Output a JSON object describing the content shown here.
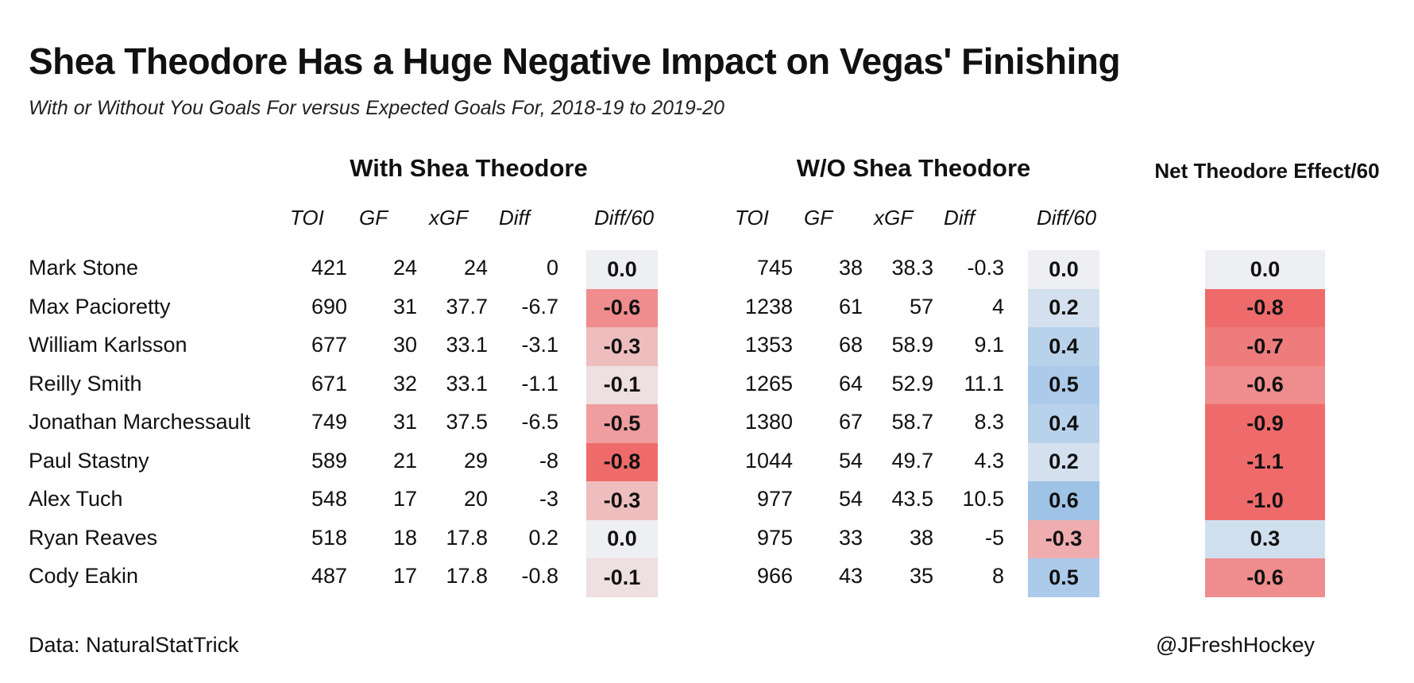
{
  "title": "Shea Theodore Has a Huge Negative Impact on Vegas' Finishing",
  "subtitle": "With or Without You Goals For versus Expected Goals For, 2018-19 to 2019-20",
  "groups": {
    "with": "With Shea Theodore",
    "without": "W/O Shea Theodore",
    "net": "Net Theodore Effect/60"
  },
  "columns": [
    "TOI",
    "GF",
    "xGF",
    "Diff",
    "Diff/60"
  ],
  "footer": {
    "source": "Data: NaturalStatTrick",
    "credit": "@JFreshHockey"
  },
  "colors": {
    "negative": "#ef6b6b",
    "positive": "#9fc3e7",
    "neutral": "#eeeff2"
  },
  "chart_data": {
    "type": "table",
    "rows": [
      {
        "player": "Mark Stone",
        "with": {
          "toi": "421",
          "gf": "24",
          "xgf": "24",
          "diff": "0",
          "diff60": "0.0"
        },
        "without": {
          "toi": "745",
          "gf": "38",
          "xgf": "38.3",
          "diff": "-0.3",
          "diff60": "0.0"
        },
        "net": "0.0"
      },
      {
        "player": "Max Pacioretty",
        "with": {
          "toi": "690",
          "gf": "31",
          "xgf": "37.7",
          "diff": "-6.7",
          "diff60": "-0.6"
        },
        "without": {
          "toi": "1238",
          "gf": "61",
          "xgf": "57",
          "diff": "4",
          "diff60": "0.2"
        },
        "net": "-0.8"
      },
      {
        "player": "William Karlsson",
        "with": {
          "toi": "677",
          "gf": "30",
          "xgf": "33.1",
          "diff": "-3.1",
          "diff60": "-0.3"
        },
        "without": {
          "toi": "1353",
          "gf": "68",
          "xgf": "58.9",
          "diff": "9.1",
          "diff60": "0.4"
        },
        "net": "-0.7"
      },
      {
        "player": "Reilly Smith",
        "with": {
          "toi": "671",
          "gf": "32",
          "xgf": "33.1",
          "diff": "-1.1",
          "diff60": "-0.1"
        },
        "without": {
          "toi": "1265",
          "gf": "64",
          "xgf": "52.9",
          "diff": "11.1",
          "diff60": "0.5"
        },
        "net": "-0.6"
      },
      {
        "player": "Jonathan Marchessault",
        "with": {
          "toi": "749",
          "gf": "31",
          "xgf": "37.5",
          "diff": "-6.5",
          "diff60": "-0.5"
        },
        "without": {
          "toi": "1380",
          "gf": "67",
          "xgf": "58.7",
          "diff": "8.3",
          "diff60": "0.4"
        },
        "net": "-0.9"
      },
      {
        "player": "Paul Stastny",
        "with": {
          "toi": "589",
          "gf": "21",
          "xgf": "29",
          "diff": "-8",
          "diff60": "-0.8"
        },
        "without": {
          "toi": "1044",
          "gf": "54",
          "xgf": "49.7",
          "diff": "4.3",
          "diff60": "0.2"
        },
        "net": "-1.1"
      },
      {
        "player": "Alex Tuch",
        "with": {
          "toi": "548",
          "gf": "17",
          "xgf": "20",
          "diff": "-3",
          "diff60": "-0.3"
        },
        "without": {
          "toi": "977",
          "gf": "54",
          "xgf": "43.5",
          "diff": "10.5",
          "diff60": "0.6"
        },
        "net": "-1.0"
      },
      {
        "player": "Ryan Reaves",
        "with": {
          "toi": "518",
          "gf": "18",
          "xgf": "17.8",
          "diff": "0.2",
          "diff60": "0.0"
        },
        "without": {
          "toi": "975",
          "gf": "33",
          "xgf": "38",
          "diff": "-5",
          "diff60": "-0.3"
        },
        "net": "0.3"
      },
      {
        "player": "Cody Eakin",
        "with": {
          "toi": "487",
          "gf": "17",
          "xgf": "17.8",
          "diff": "-0.8",
          "diff60": "-0.1"
        },
        "without": {
          "toi": "966",
          "gf": "43",
          "xgf": "35",
          "diff": "8",
          "diff60": "0.5"
        },
        "net": "-0.6"
      }
    ]
  }
}
